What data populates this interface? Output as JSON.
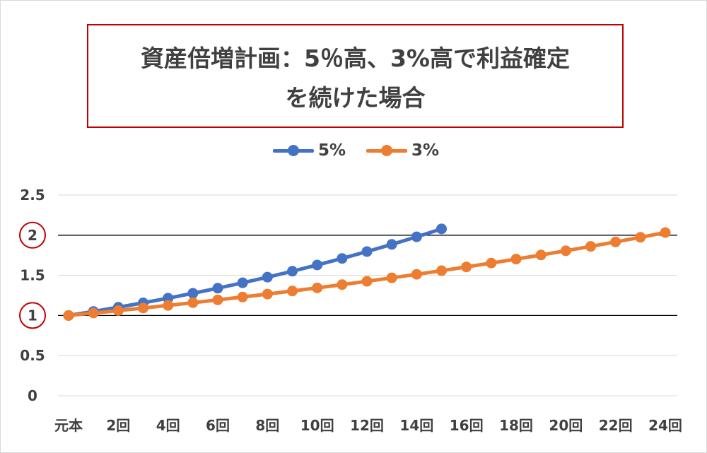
{
  "title": {
    "line1": "資産倍増計画：5％高、3%高で利益確定",
    "line2": "を続けた場合"
  },
  "legend": [
    {
      "name": "5%",
      "color": "#4472c4"
    },
    {
      "name": "3%",
      "color": "#ed7d31"
    }
  ],
  "chart_data": {
    "type": "line",
    "title": "資産倍増計画：5％高、3%高で利益確定を続けた場合",
    "xlabel": "",
    "ylabel": "",
    "ylim": [
      0,
      2.5
    ],
    "yticks": [
      "0",
      "0.5",
      "1",
      "1.5",
      "2",
      "2.5"
    ],
    "circled_yticks": [
      "1",
      "2"
    ],
    "reference_lines_y": [
      1,
      2
    ],
    "x_tick_labels": [
      "元本",
      "2回",
      "4回",
      "6回",
      "8回",
      "10回",
      "12回",
      "14回",
      "16回",
      "18回",
      "20回",
      "22回",
      "24回"
    ],
    "x_tick_values": [
      0,
      2,
      4,
      6,
      8,
      10,
      12,
      14,
      16,
      18,
      20,
      22,
      24
    ],
    "grid": true,
    "legend_position": "top-center",
    "series": [
      {
        "name": "5%",
        "color": "#4472c4",
        "x": [
          0,
          1,
          2,
          3,
          4,
          5,
          6,
          7,
          8,
          9,
          10,
          11,
          12,
          13,
          14,
          15
        ],
        "values": [
          1.0,
          1.05,
          1.1025,
          1.1576,
          1.2155,
          1.2763,
          1.3401,
          1.4071,
          1.4775,
          1.5513,
          1.6289,
          1.7103,
          1.7959,
          1.8856,
          1.9799,
          2.0789
        ]
      },
      {
        "name": "3%",
        "color": "#ed7d31",
        "x": [
          0,
          1,
          2,
          3,
          4,
          5,
          6,
          7,
          8,
          9,
          10,
          11,
          12,
          13,
          14,
          15,
          16,
          17,
          18,
          19,
          20,
          21,
          22,
          23,
          24
        ],
        "values": [
          1.0,
          1.03,
          1.0609,
          1.0927,
          1.1255,
          1.1593,
          1.1941,
          1.2299,
          1.2668,
          1.3048,
          1.3439,
          1.3842,
          1.4258,
          1.4685,
          1.5126,
          1.558,
          1.6047,
          1.6528,
          1.7024,
          1.7535,
          1.8061,
          1.8603,
          1.9161,
          1.9736,
          2.0328
        ]
      }
    ]
  }
}
